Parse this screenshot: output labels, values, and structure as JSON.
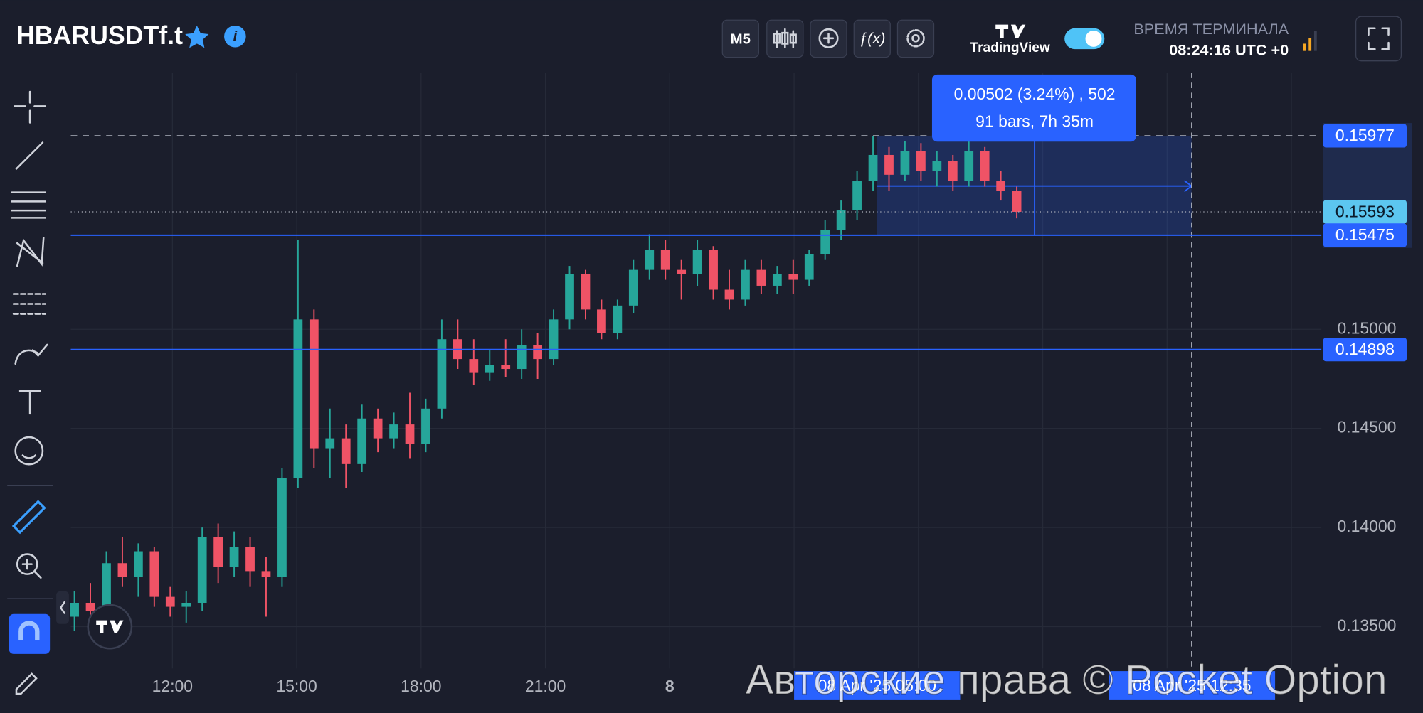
{
  "header": {
    "symbol": "HBARUSDTf.t",
    "timeframe": "M5",
    "brand": "TradingView",
    "terminal_label": "ВРЕМЯ ТЕРМИНАЛА",
    "terminal_time": "08:24:16 UTC +0"
  },
  "chart_data": {
    "type": "candlestick",
    "up_color": "#26a69a",
    "down_color": "#ef5366",
    "ohlc": [
      [
        0.1355,
        0.1368,
        0.1348,
        0.1362
      ],
      [
        0.1362,
        0.1372,
        0.1352,
        0.1358
      ],
      [
        0.1358,
        0.1388,
        0.1355,
        0.1382
      ],
      [
        0.1382,
        0.1395,
        0.137,
        0.1375
      ],
      [
        0.1375,
        0.1392,
        0.1365,
        0.1388
      ],
      [
        0.1388,
        0.139,
        0.136,
        0.1365
      ],
      [
        0.1365,
        0.137,
        0.1355,
        0.136
      ],
      [
        0.136,
        0.1368,
        0.1352,
        0.1362
      ],
      [
        0.1362,
        0.14,
        0.1358,
        0.1395
      ],
      [
        0.1395,
        0.1402,
        0.1372,
        0.138
      ],
      [
        0.138,
        0.1398,
        0.1375,
        0.139
      ],
      [
        0.139,
        0.1395,
        0.137,
        0.1378
      ],
      [
        0.1378,
        0.1385,
        0.1355,
        0.1375
      ],
      [
        0.1375,
        0.143,
        0.137,
        0.1425
      ],
      [
        0.1425,
        0.1545,
        0.142,
        0.1505
      ],
      [
        0.1505,
        0.151,
        0.143,
        0.144
      ],
      [
        0.144,
        0.146,
        0.1425,
        0.1445
      ],
      [
        0.1445,
        0.1452,
        0.142,
        0.1432
      ],
      [
        0.1432,
        0.1462,
        0.1428,
        0.1455
      ],
      [
        0.1455,
        0.146,
        0.1438,
        0.1445
      ],
      [
        0.1445,
        0.1458,
        0.144,
        0.1452
      ],
      [
        0.1452,
        0.1468,
        0.1435,
        0.1442
      ],
      [
        0.1442,
        0.1465,
        0.1438,
        0.146
      ],
      [
        0.146,
        0.1505,
        0.1455,
        0.1495
      ],
      [
        0.1495,
        0.1505,
        0.148,
        0.1485
      ],
      [
        0.1485,
        0.1495,
        0.1472,
        0.1478
      ],
      [
        0.1478,
        0.149,
        0.1474,
        0.1482
      ],
      [
        0.1482,
        0.1495,
        0.1476,
        0.148
      ],
      [
        0.148,
        0.15,
        0.1475,
        0.1492
      ],
      [
        0.1492,
        0.1498,
        0.1475,
        0.1485
      ],
      [
        0.1485,
        0.151,
        0.1482,
        0.1505
      ],
      [
        0.1505,
        0.1532,
        0.15,
        0.1528
      ],
      [
        0.1528,
        0.153,
        0.1505,
        0.151
      ],
      [
        0.151,
        0.1515,
        0.1495,
        0.1498
      ],
      [
        0.1498,
        0.1515,
        0.1495,
        0.1512
      ],
      [
        0.1512,
        0.1535,
        0.1508,
        0.153
      ],
      [
        0.153,
        0.1548,
        0.1525,
        0.154
      ],
      [
        0.154,
        0.1545,
        0.1525,
        0.153
      ],
      [
        0.153,
        0.1535,
        0.1515,
        0.1528
      ],
      [
        0.1528,
        0.1545,
        0.1522,
        0.154
      ],
      [
        0.154,
        0.1542,
        0.1515,
        0.152
      ],
      [
        0.152,
        0.153,
        0.151,
        0.1515
      ],
      [
        0.1515,
        0.1535,
        0.1512,
        0.153
      ],
      [
        0.153,
        0.1535,
        0.1518,
        0.1522
      ],
      [
        0.1522,
        0.1532,
        0.1518,
        0.1528
      ],
      [
        0.1528,
        0.1535,
        0.1518,
        0.1525
      ],
      [
        0.1525,
        0.154,
        0.1522,
        0.1538
      ],
      [
        0.1538,
        0.1555,
        0.1535,
        0.155
      ],
      [
        0.155,
        0.1565,
        0.1545,
        0.156
      ],
      [
        0.156,
        0.158,
        0.1555,
        0.1575
      ],
      [
        0.1575,
        0.15977,
        0.157,
        0.1588
      ],
      [
        0.1588,
        0.1592,
        0.157,
        0.1578
      ],
      [
        0.1578,
        0.1595,
        0.1575,
        0.159
      ],
      [
        0.159,
        0.1594,
        0.1575,
        0.158
      ],
      [
        0.158,
        0.159,
        0.1572,
        0.1585
      ],
      [
        0.1585,
        0.1588,
        0.157,
        0.1575
      ],
      [
        0.1575,
        0.1597,
        0.1572,
        0.159
      ],
      [
        0.159,
        0.1592,
        0.1572,
        0.1575
      ],
      [
        0.1575,
        0.158,
        0.1565,
        0.157
      ],
      [
        0.157,
        0.1572,
        0.1556,
        0.15593
      ]
    ],
    "ylim": [
      0.13289,
      0.16295
    ],
    "yticks": [
      {
        "value": 0.135,
        "label": "0.13500"
      },
      {
        "value": 0.14,
        "label": "0.14000"
      },
      {
        "value": 0.145,
        "label": "0.14500"
      },
      {
        "value": 0.15,
        "label": "0.15000"
      }
    ],
    "xticks": [
      "12:00",
      "15:00",
      "18:00",
      "21:00",
      "8"
    ],
    "high_line": 0.15977,
    "last_price": 0.15593,
    "levels": [
      0.15475,
      0.14898
    ],
    "measure": {
      "from": 0.15475,
      "to": 0.15977,
      "lines": [
        "0.00502 (3.24%) , 502",
        "91 bars, 7h 35m"
      ]
    },
    "time_labels": [
      "08 Apr '25 05:00",
      "08 Apr '25 12:35"
    ],
    "watermark": "Авторские права © Pocket Option"
  }
}
